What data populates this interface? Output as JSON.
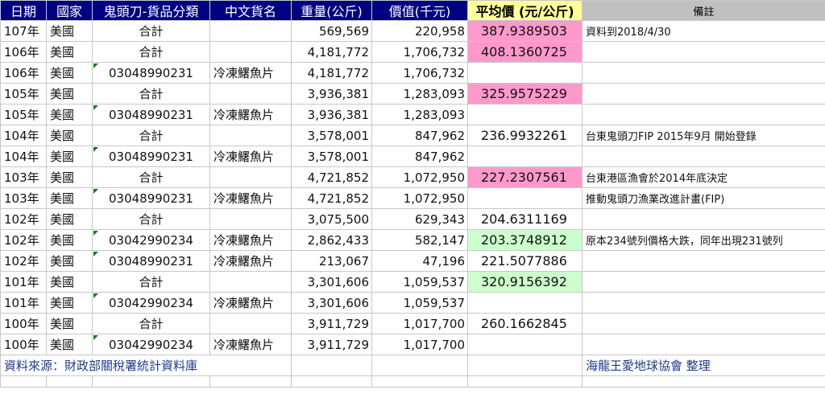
{
  "headers": [
    "日期",
    "國家",
    "鬼頭刀-貨品分類",
    "中文貨名",
    "重量(公斤)",
    "價值(千元)",
    "平均價 (元/公斤)",
    "備註"
  ],
  "rows": [
    {
      "date": "107年",
      "country": "美國",
      "code": "合計",
      "name": "",
      "weight": "569,569",
      "value": "220,958",
      "avg": "387.9389503",
      "note": "資料到2018/4/30"
    },
    {
      "date": "106年",
      "country": "美國",
      "code": "合計",
      "name": "",
      "weight": "4,181,772",
      "value": "1,706,732",
      "avg": "408.1360725",
      "note": ""
    },
    {
      "date": "106年",
      "country": "美國",
      "code": "03048990231",
      "name": "冷凍鱰魚片",
      "weight": "4,181,772",
      "value": "1,706,732",
      "avg": "",
      "note": ""
    },
    {
      "date": "105年",
      "country": "美國",
      "code": "合計",
      "name": "",
      "weight": "3,936,381",
      "value": "1,283,093",
      "avg": "325.9575229",
      "note": ""
    },
    {
      "date": "105年",
      "country": "美國",
      "code": "03048990231",
      "name": "冷凍鱰魚片",
      "weight": "3,936,381",
      "value": "1,283,093",
      "avg": "",
      "note": ""
    },
    {
      "date": "104年",
      "country": "美國",
      "code": "合計",
      "name": "",
      "weight": "3,578,001",
      "value": "847,962",
      "avg": "236.9932261",
      "note": "台東鬼頭刀FIP 2015年9月 開始登錄"
    },
    {
      "date": "104年",
      "country": "美國",
      "code": "03048990231",
      "name": "冷凍鱰魚片",
      "weight": "3,578,001",
      "value": "847,962",
      "avg": "",
      "note": ""
    },
    {
      "date": "103年",
      "country": "美國",
      "code": "合計",
      "name": "",
      "weight": "4,721,852",
      "value": "1,072,950",
      "avg": "227.2307561",
      "note": "台東港區漁會於2014年底決定"
    },
    {
      "date": "103年",
      "country": "美國",
      "code": "03048990231",
      "name": "冷凍鱰魚片",
      "weight": "4,721,852",
      "value": "1,072,950",
      "avg": "",
      "note": "推動鬼頭刀漁業改進計畫(FIP)"
    },
    {
      "date": "102年",
      "country": "美國",
      "code": "合計",
      "name": "",
      "weight": "3,075,500",
      "value": "629,343",
      "avg": "204.6311169",
      "note": ""
    },
    {
      "date": "102年",
      "country": "美國",
      "code": "03042990234",
      "name": "冷凍鱰魚片",
      "weight": "2,862,433",
      "value": "582,147",
      "avg": "203.3748912",
      "note": "原本234號列價格大跌，同年出現231號列"
    },
    {
      "date": "102年",
      "country": "美國",
      "code": "03048990231",
      "name": "冷凍鱰魚片",
      "weight": "213,067",
      "value": "47,196",
      "avg": "221.5077886",
      "note": ""
    },
    {
      "date": "101年",
      "country": "美國",
      "code": "合計",
      "name": "",
      "weight": "3,301,606",
      "value": "1,059,537",
      "avg": "320.9156392",
      "note": ""
    },
    {
      "date": "101年",
      "country": "美國",
      "code": "03042990234",
      "name": "冷凍鱰魚片",
      "weight": "3,301,606",
      "value": "1,059,537",
      "avg": "",
      "note": ""
    },
    {
      "date": "100年",
      "country": "美國",
      "code": "合計",
      "name": "",
      "weight": "3,911,729",
      "value": "1,017,700",
      "avg": "260.1662845",
      "note": ""
    },
    {
      "date": "100年",
      "country": "美國",
      "code": "03042990234",
      "name": "冷凍鱰魚片",
      "weight": "3,911,729",
      "value": "1,017,700",
      "avg": "",
      "note": ""
    }
  ],
  "highlight_colors": {
    "pink": "#ff99cc",
    "green": "#ccffcc"
  },
  "footer": {
    "source": "資料來源：財政部關稅署統計資料庫",
    "organizer": "海龍王愛地球協會  整理"
  }
}
